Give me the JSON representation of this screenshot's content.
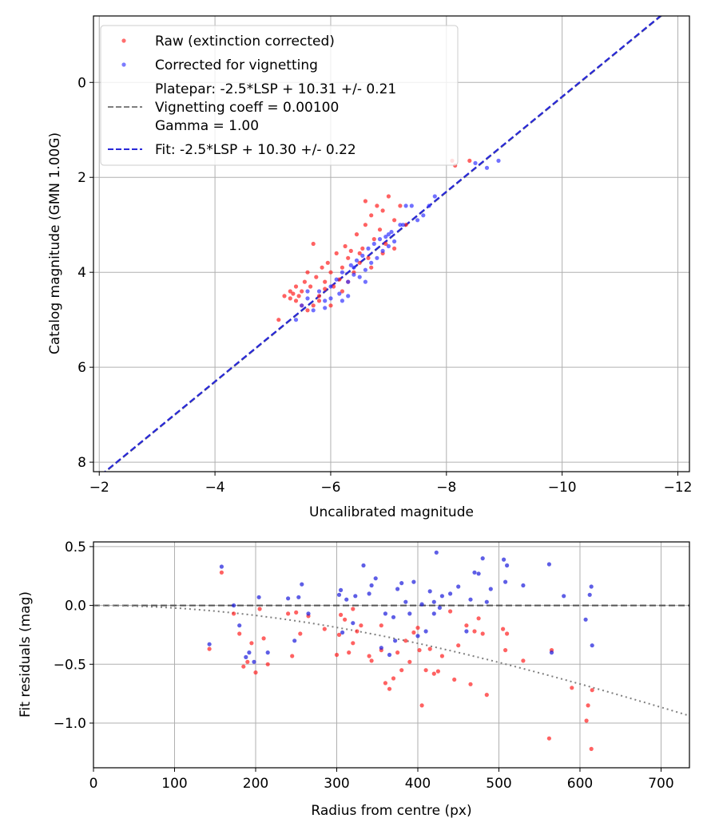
{
  "chart_data": [
    {
      "type": "scatter",
      "xlabel": "Uncalibrated magnitude",
      "ylabel": "Catalog magnitude (GMN 1.00G)",
      "xlim": [
        -1.9,
        -12.2
      ],
      "ylim": [
        8.2,
        -1.4
      ],
      "x_ticks": [
        -2,
        -4,
        -6,
        -8,
        -10,
        -12
      ],
      "x_tick_labels": [
        "−2",
        "−4",
        "−6",
        "−8",
        "−10",
        "−12"
      ],
      "y_ticks": [
        0,
        2,
        4,
        6,
        8
      ],
      "y_tick_labels": [
        "0",
        "2",
        "4",
        "6",
        "8"
      ],
      "grid": true,
      "legend_position": "top-left",
      "legend": [
        {
          "label": "Raw (extinction corrected)",
          "kind": "marker",
          "color": "#ff2020"
        },
        {
          "label": "Corrected for vignetting",
          "kind": "marker",
          "color": "#3535ff"
        },
        {
          "label": "Platepar: -2.5*LSP + 10.31 +/- 0.21",
          "kind": "dashed",
          "color": "#7f7f7f"
        },
        {
          "label": "Vignetting coeff = 0.00100",
          "kind": "none",
          "color": "#7f7f7f"
        },
        {
          "label": "Gamma = 1.00",
          "kind": "none",
          "color": "#7f7f7f"
        },
        {
          "label": "Fit: -2.5*LSP + 10.30 +/- 0.22",
          "kind": "dashed",
          "color": "#2828d8"
        }
      ],
      "lines": [
        {
          "name": "Platepar",
          "slope": 1,
          "intercept": 10.31,
          "color": "#7f7f7f",
          "style": "dashed"
        },
        {
          "name": "Fit",
          "slope": 1,
          "intercept": 10.3,
          "color": "#2828d8",
          "style": "dashed"
        }
      ],
      "series": [
        {
          "name": "Raw (extinction corrected)",
          "color": "#ff2020",
          "points": [
            [
              -5.1,
              5.0
            ],
            [
              -5.2,
              4.5
            ],
            [
              -5.3,
              4.55
            ],
            [
              -5.35,
              4.45
            ],
            [
              -5.4,
              4.6
            ],
            [
              -5.45,
              4.5
            ],
            [
              -5.5,
              4.4
            ],
            [
              -5.55,
              4.2
            ],
            [
              -5.5,
              4.7
            ],
            [
              -5.6,
              4.0
            ],
            [
              -5.65,
              4.3
            ],
            [
              -5.6,
              4.8
            ],
            [
              -5.7,
              3.4
            ],
            [
              -5.75,
              4.1
            ],
            [
              -5.8,
              4.5
            ],
            [
              -5.85,
              3.9
            ],
            [
              -5.9,
              4.2
            ],
            [
              -5.95,
              3.8
            ],
            [
              -6.0,
              4.0
            ],
            [
              -6.05,
              4.3
            ],
            [
              -6.1,
              3.6
            ],
            [
              -6.15,
              4.15
            ],
            [
              -6.2,
              3.9
            ],
            [
              -6.25,
              3.45
            ],
            [
              -6.3,
              3.7
            ],
            [
              -6.35,
              3.55
            ],
            [
              -6.4,
              4.0
            ],
            [
              -6.45,
              3.2
            ],
            [
              -6.5,
              3.8
            ],
            [
              -6.55,
              3.5
            ],
            [
              -6.6,
              3.0
            ],
            [
              -6.65,
              3.7
            ],
            [
              -6.7,
              2.8
            ],
            [
              -6.75,
              3.3
            ],
            [
              -6.8,
              2.6
            ],
            [
              -6.85,
              3.1
            ],
            [
              -6.9,
              2.7
            ],
            [
              -6.95,
              3.4
            ],
            [
              -7.0,
              2.4
            ],
            [
              -7.1,
              2.9
            ],
            [
              -7.2,
              2.6
            ],
            [
              -7.3,
              3.0
            ],
            [
              -6.6,
              2.5
            ],
            [
              -5.8,
              4.6
            ],
            [
              -6.0,
              4.7
            ],
            [
              -6.2,
              4.4
            ],
            [
              -5.4,
              4.3
            ],
            [
              -6.9,
              3.6
            ],
            [
              -7.1,
              3.5
            ],
            [
              -8.15,
              1.75
            ],
            [
              -8.1,
              1.65
            ],
            [
              -8.4,
              1.65
            ],
            [
              -6.3,
              4.2
            ],
            [
              -5.9,
              4.35
            ],
            [
              -6.5,
              3.6
            ],
            [
              -6.7,
              3.9
            ],
            [
              -5.7,
              4.7
            ],
            [
              -5.3,
              4.4
            ]
          ]
        },
        {
          "name": "Corrected for vignetting",
          "color": "#3535ff",
          "points": [
            [
              -5.4,
              5.0
            ],
            [
              -5.5,
              4.7
            ],
            [
              -5.6,
              4.55
            ],
            [
              -5.7,
              4.8
            ],
            [
              -5.8,
              4.4
            ],
            [
              -5.9,
              4.6
            ],
            [
              -6.0,
              4.3
            ],
            [
              -6.1,
              4.15
            ],
            [
              -6.15,
              4.45
            ],
            [
              -6.2,
              4.0
            ],
            [
              -6.3,
              4.2
            ],
            [
              -6.35,
              3.85
            ],
            [
              -6.4,
              4.05
            ],
            [
              -6.45,
              3.75
            ],
            [
              -6.5,
              4.1
            ],
            [
              -6.55,
              3.65
            ],
            [
              -6.6,
              3.95
            ],
            [
              -6.65,
              3.5
            ],
            [
              -6.7,
              3.8
            ],
            [
              -6.75,
              3.4
            ],
            [
              -6.8,
              3.7
            ],
            [
              -6.85,
              3.3
            ],
            [
              -6.9,
              3.55
            ],
            [
              -6.95,
              3.25
            ],
            [
              -7.0,
              3.45
            ],
            [
              -7.05,
              3.15
            ],
            [
              -7.1,
              3.35
            ],
            [
              -7.2,
              3.0
            ],
            [
              -7.3,
              2.6
            ],
            [
              -7.4,
              2.6
            ],
            [
              -7.5,
              2.9
            ],
            [
              -7.6,
              2.8
            ],
            [
              -7.7,
              2.6
            ],
            [
              -7.8,
              2.4
            ],
            [
              -8.5,
              1.7
            ],
            [
              -8.7,
              1.8
            ],
            [
              -8.9,
              1.65
            ],
            [
              -6.3,
              4.5
            ],
            [
              -5.9,
              4.75
            ],
            [
              -6.2,
              4.6
            ],
            [
              -6.6,
              4.2
            ],
            [
              -6.0,
              4.55
            ],
            [
              -7.0,
              3.2
            ],
            [
              -7.25,
              3.0
            ],
            [
              -6.4,
              3.9
            ],
            [
              -5.6,
              4.4
            ]
          ]
        }
      ]
    },
    {
      "type": "scatter",
      "xlabel": "Radius from centre (px)",
      "ylabel": "Fit residuals (mag)",
      "xlim": [
        0,
        735
      ],
      "ylim": [
        -1.38,
        0.54
      ],
      "x_ticks": [
        0,
        100,
        200,
        300,
        400,
        500,
        600,
        700
      ],
      "x_tick_labels": [
        "0",
        "100",
        "200",
        "300",
        "400",
        "500",
        "600",
        "700"
      ],
      "y_ticks": [
        0.5,
        0.0,
        -0.5,
        -1.0
      ],
      "y_tick_labels": [
        "0.5",
        "0.0",
        "−0.5",
        "−1.0"
      ],
      "grid": true,
      "reference_lines": [
        {
          "name": "zero",
          "value": 0,
          "color": "#555555",
          "style": "dashed"
        }
      ],
      "vignetting_curve": {
        "coeff": 0.001,
        "gamma": 1.0,
        "color": "#7f7f7f",
        "style": "dotted"
      },
      "series": [
        {
          "name": "Raw (extinction corrected)",
          "color": "#ff2020",
          "points": [
            [
              143,
              -0.37
            ],
            [
              158,
              0.28
            ],
            [
              173,
              -0.07
            ],
            [
              180,
              -0.24
            ],
            [
              185,
              -0.52
            ],
            [
              190,
              -0.48
            ],
            [
              195,
              -0.32
            ],
            [
              200,
              -0.57
            ],
            [
              205,
              -0.03
            ],
            [
              210,
              -0.28
            ],
            [
              215,
              -0.5
            ],
            [
              240,
              -0.07
            ],
            [
              245,
              -0.43
            ],
            [
              250,
              -0.06
            ],
            [
              255,
              -0.24
            ],
            [
              265,
              -0.09
            ],
            [
              285,
              -0.2
            ],
            [
              300,
              -0.42
            ],
            [
              303,
              -0.25
            ],
            [
              305,
              -0.08
            ],
            [
              310,
              -0.12
            ],
            [
              315,
              -0.4
            ],
            [
              320,
              -0.03
            ],
            [
              325,
              -0.22
            ],
            [
              330,
              -0.17
            ],
            [
              340,
              -0.43
            ],
            [
              343,
              -0.47
            ],
            [
              355,
              -0.38
            ],
            [
              360,
              -0.66
            ],
            [
              365,
              -0.71
            ],
            [
              370,
              -0.62
            ],
            [
              375,
              -0.4
            ],
            [
              380,
              -0.55
            ],
            [
              385,
              -0.3
            ],
            [
              390,
              -0.48
            ],
            [
              395,
              -0.23
            ],
            [
              400,
              -0.19
            ],
            [
              405,
              -0.85
            ],
            [
              410,
              -0.55
            ],
            [
              415,
              -0.37
            ],
            [
              420,
              -0.58
            ],
            [
              425,
              -0.56
            ],
            [
              430,
              -0.43
            ],
            [
              440,
              -0.05
            ],
            [
              445,
              -0.63
            ],
            [
              450,
              -0.34
            ],
            [
              460,
              -0.17
            ],
            [
              465,
              -0.67
            ],
            [
              470,
              -0.22
            ],
            [
              475,
              -0.11
            ],
            [
              480,
              -0.24
            ],
            [
              485,
              -0.76
            ],
            [
              505,
              -0.2
            ],
            [
              508,
              -0.38
            ],
            [
              510,
              -0.24
            ],
            [
              530,
              -0.47
            ],
            [
              562,
              -1.13
            ],
            [
              565,
              -0.38
            ],
            [
              590,
              -0.7
            ],
            [
              608,
              -0.98
            ],
            [
              614,
              -1.22
            ],
            [
              615,
              -0.72
            ],
            [
              610,
              -0.85
            ],
            [
              402,
              -0.38
            ],
            [
              355,
              -0.17
            ],
            [
              320,
              -0.32
            ]
          ]
        },
        {
          "name": "Corrected for vignetting",
          "color": "#1a1adc",
          "points": [
            [
              143,
              -0.33
            ],
            [
              158,
              0.33
            ],
            [
              173,
              0.0
            ],
            [
              180,
              -0.17
            ],
            [
              188,
              -0.44
            ],
            [
              192,
              -0.4
            ],
            [
              198,
              -0.48
            ],
            [
              204,
              0.07
            ],
            [
              215,
              -0.4
            ],
            [
              240,
              0.06
            ],
            [
              248,
              -0.3
            ],
            [
              253,
              0.07
            ],
            [
              257,
              0.18
            ],
            [
              265,
              -0.07
            ],
            [
              303,
              0.09
            ],
            [
              305,
              0.13
            ],
            [
              307,
              -0.23
            ],
            [
              312,
              0.05
            ],
            [
              320,
              -0.15
            ],
            [
              323,
              0.08
            ],
            [
              333,
              0.34
            ],
            [
              340,
              0.1
            ],
            [
              343,
              0.17
            ],
            [
              348,
              0.23
            ],
            [
              355,
              -0.36
            ],
            [
              360,
              -0.07
            ],
            [
              365,
              -0.42
            ],
            [
              370,
              -0.1
            ],
            [
              375,
              0.14
            ],
            [
              380,
              0.19
            ],
            [
              385,
              0.03
            ],
            [
              390,
              -0.07
            ],
            [
              395,
              0.2
            ],
            [
              400,
              -0.26
            ],
            [
              405,
              0.01
            ],
            [
              410,
              -0.22
            ],
            [
              415,
              0.12
            ],
            [
              420,
              -0.07
            ],
            [
              423,
              0.45
            ],
            [
              427,
              -0.02
            ],
            [
              430,
              0.08
            ],
            [
              440,
              0.1
            ],
            [
              450,
              0.16
            ],
            [
              460,
              -0.22
            ],
            [
              465,
              0.05
            ],
            [
              470,
              0.28
            ],
            [
              475,
              0.27
            ],
            [
              480,
              0.4
            ],
            [
              485,
              0.03
            ],
            [
              490,
              0.14
            ],
            [
              506,
              0.39
            ],
            [
              508,
              0.2
            ],
            [
              510,
              0.34
            ],
            [
              530,
              0.17
            ],
            [
              562,
              0.35
            ],
            [
              565,
              -0.4
            ],
            [
              580,
              0.08
            ],
            [
              607,
              -0.12
            ],
            [
              612,
              0.09
            ],
            [
              614,
              0.16
            ],
            [
              615,
              -0.34
            ],
            [
              372,
              -0.3
            ],
            [
              420,
              0.03
            ]
          ]
        }
      ]
    }
  ]
}
